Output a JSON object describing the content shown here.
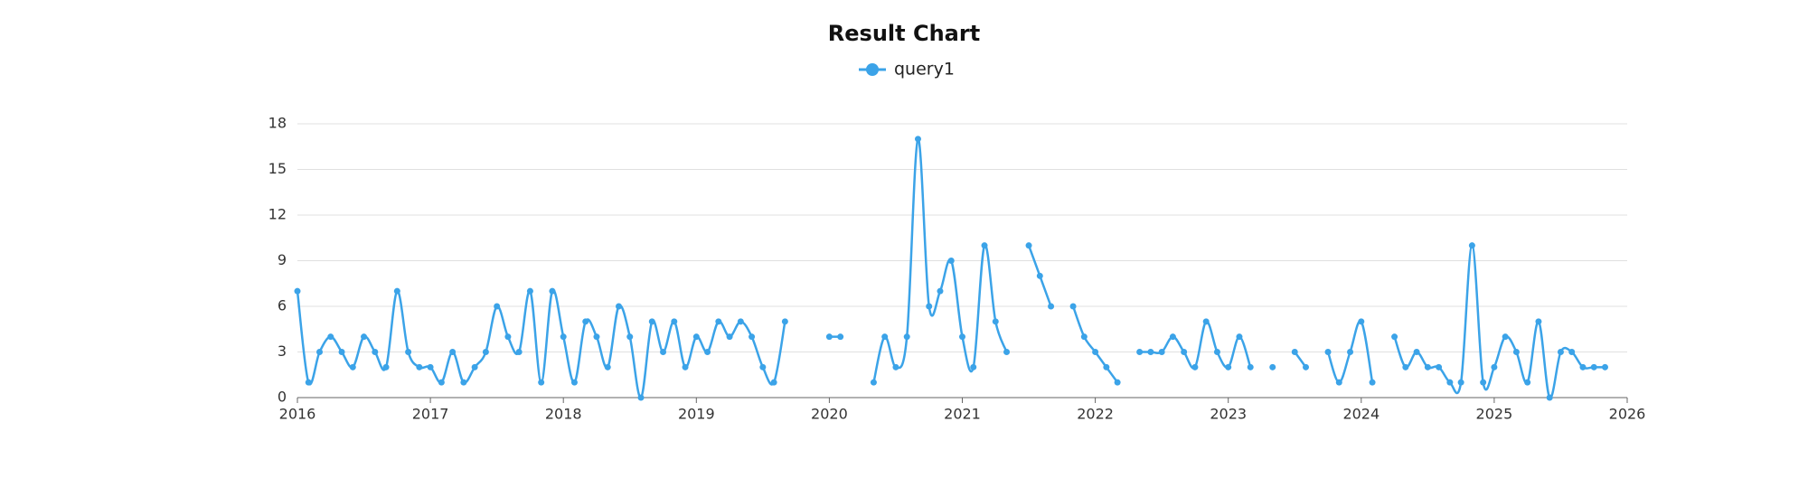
{
  "chart_data": {
    "type": "line",
    "title": "Result Chart",
    "x": [
      "2016-01",
      "2016-02",
      "2016-03",
      "2016-04",
      "2016-05",
      "2016-06",
      "2016-07",
      "2016-08",
      "2016-09",
      "2016-10",
      "2016-11",
      "2016-12",
      "2017-01",
      "2017-02",
      "2017-03",
      "2017-04",
      "2017-05",
      "2017-06",
      "2017-07",
      "2017-08",
      "2017-09",
      "2017-10",
      "2017-11",
      "2017-12",
      "2018-01",
      "2018-02",
      "2018-03",
      "2018-04",
      "2018-05",
      "2018-06",
      "2018-07",
      "2018-08",
      "2018-09",
      "2018-10",
      "2018-11",
      "2018-12",
      "2019-01",
      "2019-02",
      "2019-03",
      "2019-04",
      "2019-05",
      "2019-06",
      "2019-07",
      "2019-08",
      "2019-09",
      "2019-10",
      "2019-11",
      "2019-12",
      "2020-01",
      "2020-02",
      "2020-03",
      "2020-04",
      "2020-05",
      "2020-06",
      "2020-07",
      "2020-08",
      "2020-09",
      "2020-10",
      "2020-11",
      "2020-12",
      "2021-01",
      "2021-02",
      "2021-03",
      "2021-04",
      "2021-05",
      "2021-06",
      "2021-07",
      "2021-08",
      "2021-09",
      "2021-10",
      "2021-11",
      "2021-12",
      "2022-01",
      "2022-02",
      "2022-03",
      "2022-04",
      "2022-05",
      "2022-06",
      "2022-07",
      "2022-08",
      "2022-09",
      "2022-10",
      "2022-11",
      "2022-12",
      "2023-01",
      "2023-02",
      "2023-03",
      "2023-04",
      "2023-05",
      "2023-06",
      "2023-07",
      "2023-08",
      "2023-09",
      "2023-10",
      "2023-11",
      "2023-12",
      "2024-01",
      "2024-02",
      "2024-03",
      "2024-04",
      "2024-05",
      "2024-06",
      "2024-07",
      "2024-08",
      "2024-09",
      "2024-10",
      "2024-11",
      "2024-12",
      "2025-01",
      "2025-02",
      "2025-03",
      "2025-04",
      "2025-05",
      "2025-06",
      "2025-07",
      "2025-08",
      "2025-09",
      "2025-10",
      "2025-11"
    ],
    "series": [
      {
        "name": "query1",
        "color": "#3ba3e8",
        "values": [
          7,
          1,
          3,
          4,
          3,
          2,
          4,
          3,
          2,
          7,
          3,
          2,
          2,
          1,
          3,
          1,
          2,
          3,
          6,
          4,
          3,
          7,
          1,
          7,
          4,
          1,
          5,
          4,
          2,
          6,
          4,
          0,
          5,
          3,
          5,
          2,
          4,
          3,
          5,
          4,
          5,
          4,
          2,
          1,
          5,
          null,
          null,
          null,
          4,
          4,
          null,
          null,
          1,
          4,
          2,
          4,
          17,
          6,
          7,
          9,
          4,
          2,
          10,
          5,
          3,
          null,
          10,
          8,
          6,
          null,
          6,
          4,
          3,
          2,
          1,
          null,
          3,
          3,
          3,
          4,
          3,
          2,
          5,
          3,
          2,
          4,
          2,
          null,
          2,
          null,
          3,
          2,
          null,
          3,
          1,
          3,
          5,
          1,
          null,
          4,
          2,
          3,
          2,
          2,
          1,
          1,
          10,
          1,
          2,
          4,
          3,
          1,
          5,
          0,
          3,
          3,
          2,
          2,
          2
        ]
      }
    ],
    "xlim": [
      2016,
      2026
    ],
    "xticks": [
      2016,
      2017,
      2018,
      2019,
      2020,
      2021,
      2022,
      2023,
      2024,
      2025,
      2026
    ],
    "ylim": [
      0,
      18
    ],
    "yticks": [
      0,
      3,
      6,
      9,
      12,
      15,
      18
    ],
    "grid": true
  }
}
